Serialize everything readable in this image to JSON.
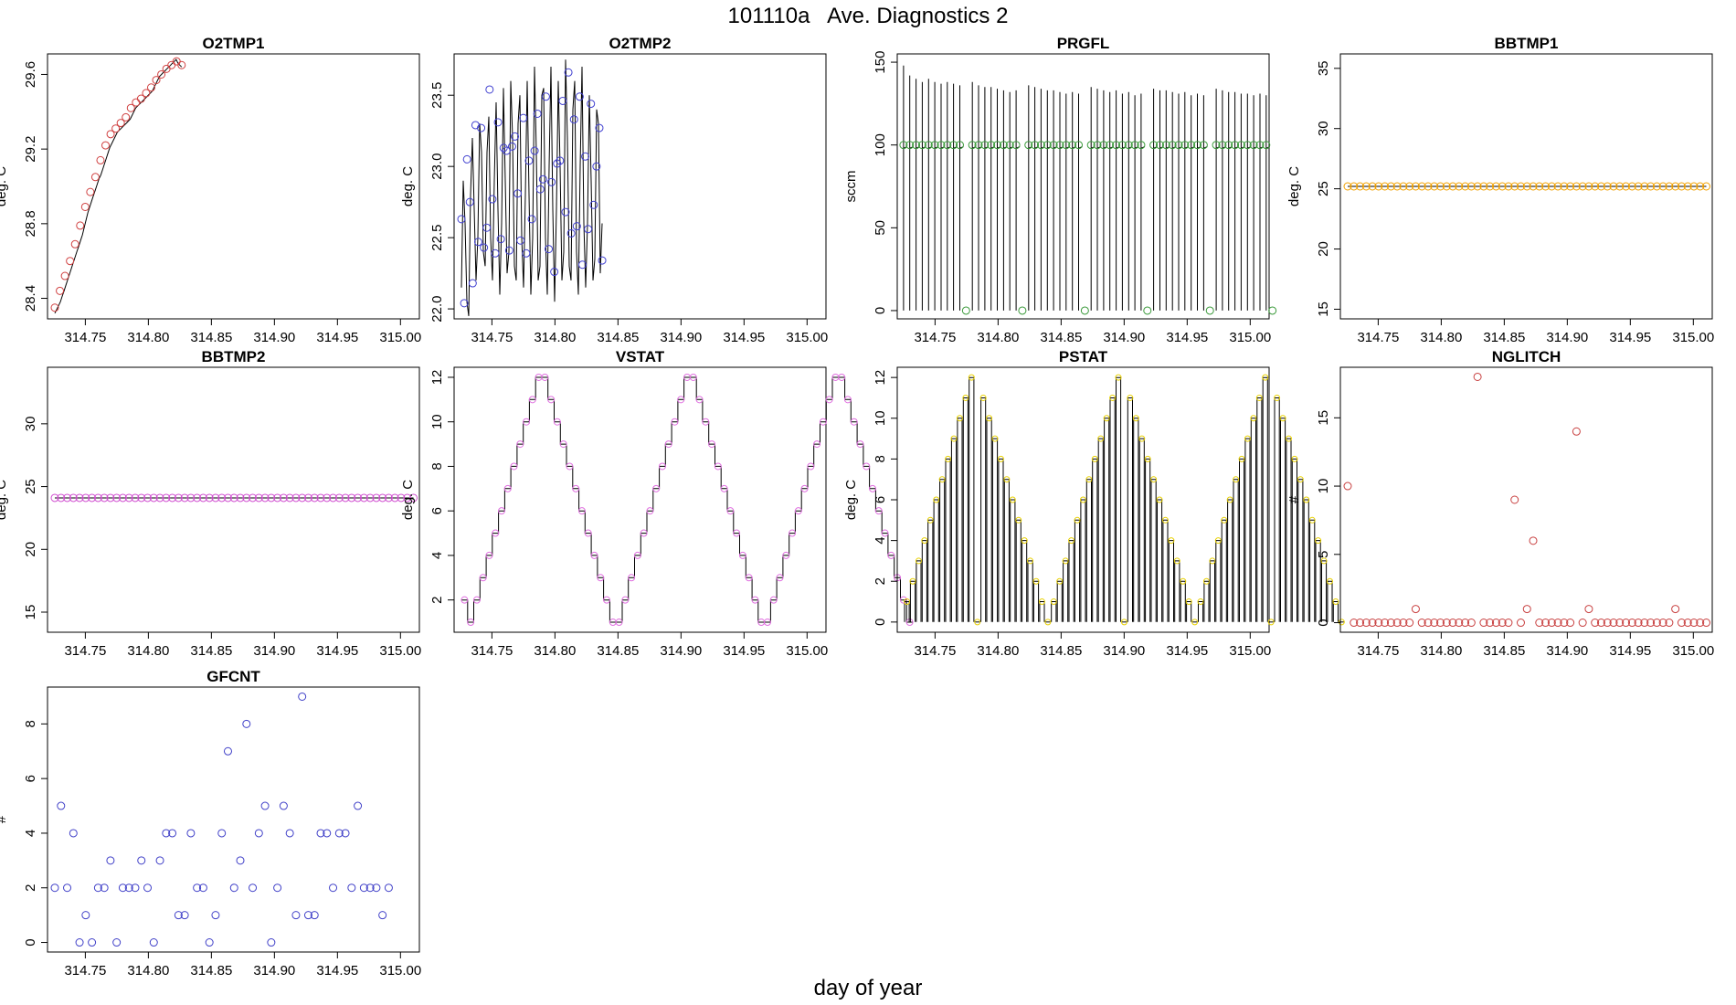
{
  "page": {
    "title": "101110a   Ave. Diagnostics 2",
    "xlabel": "day of year"
  },
  "chart_data": [
    {
      "id": "o2tmp1",
      "type": "line",
      "title": "O2TMP1",
      "ylabel": "deg. C",
      "xlim": [
        314.72,
        315.015
      ],
      "ylim": [
        28.29,
        29.71
      ],
      "xticks": [
        314.75,
        314.8,
        314.85,
        314.9,
        314.95,
        315.0
      ],
      "xtick_labels": [
        "314.75",
        "314.80",
        "314.85",
        "314.90",
        "314.95",
        "315.00"
      ],
      "yticks": [
        28.4,
        28.8,
        29.2,
        29.6
      ],
      "ytick_labels": [
        "28.4",
        "28.8",
        "29.2",
        "29.6"
      ],
      "marker_color": "#d04040",
      "x_start": 314.7258,
      "x_step": 0.001458,
      "values": [
        28.32,
        28.34,
        28.36,
        28.38,
        28.41,
        28.44,
        28.47,
        28.5,
        28.53,
        28.56,
        28.59,
        28.62,
        28.65,
        28.68,
        28.71,
        28.74,
        28.78,
        28.82,
        28.86,
        28.89,
        28.92,
        28.95,
        28.98,
        29.01,
        29.04,
        29.06,
        29.09,
        29.12,
        29.15,
        29.18,
        29.21,
        29.23,
        29.25,
        29.27,
        29.29,
        29.3,
        29.31,
        29.32,
        29.33,
        29.34,
        29.35,
        29.36,
        29.38,
        29.4,
        29.42,
        29.43,
        29.44,
        29.45,
        29.46,
        29.47,
        29.48,
        29.49,
        29.5,
        29.51,
        29.53,
        29.55,
        29.57,
        29.59,
        29.6,
        29.61,
        29.62,
        29.63,
        29.64,
        29.65,
        29.66,
        29.67,
        29.68,
        29.66,
        29.65,
        29.64
      ],
      "markers": [
        28.35,
        28.44,
        28.52,
        28.6,
        28.69,
        28.79,
        28.89,
        28.97,
        29.05,
        29.14,
        29.22,
        29.28,
        29.31,
        29.34,
        29.37,
        29.42,
        29.45,
        29.47,
        29.5,
        29.53,
        29.57,
        29.6,
        29.63,
        29.65,
        29.67,
        29.65
      ]
    },
    {
      "id": "o2tmp2",
      "type": "line",
      "title": "O2TMP2",
      "ylabel": "deg. C",
      "xlim": [
        314.72,
        315.015
      ],
      "ylim": [
        21.93,
        23.79
      ],
      "xticks": [
        314.75,
        314.8,
        314.85,
        314.9,
        314.95,
        315.0
      ],
      "xtick_labels": [
        "314.75",
        "314.80",
        "314.85",
        "314.90",
        "314.95",
        "315.00"
      ],
      "yticks": [
        22.0,
        22.5,
        23.0,
        23.5
      ],
      "ytick_labels": [
        "22.0",
        "22.5",
        "23.0",
        "23.5"
      ],
      "marker_color": "#4040d0",
      "x_start": 314.7258,
      "x_step": 0.00145,
      "values": [
        22.15,
        22.9,
        22.6,
        22.05,
        21.95,
        22.8,
        23.2,
        22.7,
        22.2,
        22.5,
        23.3,
        23.1,
        22.4,
        22.3,
        23.1,
        23.35,
        22.5,
        22.2,
        22.9,
        23.45,
        22.7,
        22.1,
        22.6,
        23.55,
        22.9,
        22.25,
        22.4,
        23.6,
        23.2,
        22.3,
        22.2,
        23.3,
        23.5,
        22.5,
        22.15,
        22.8,
        23.6,
        22.8,
        22.1,
        22.5,
        23.7,
        23.1,
        22.2,
        22.3,
        23.5,
        23.55,
        22.5,
        22.1,
        23.0,
        23.7,
        22.7,
        22.05,
        22.7,
        23.6,
        23.0,
        22.2,
        22.4,
        23.75,
        23.2,
        22.3,
        22.2,
        23.4,
        23.6,
        22.4,
        22.1,
        23.0,
        23.7,
        22.6,
        22.15,
        22.6,
        23.5,
        22.9,
        22.2,
        22.35,
        23.4,
        23.3,
        22.25,
        22.6
      ],
      "markers": [
        22.63,
        22.04,
        23.05,
        22.75,
        22.18,
        23.29,
        22.47,
        23.27,
        22.43,
        22.57,
        23.54,
        22.77,
        22.39,
        23.31,
        22.49,
        23.13,
        23.11,
        22.41,
        23.14,
        23.21,
        22.81,
        22.48,
        23.34,
        22.39,
        23.04,
        22.63,
        23.11,
        23.37,
        22.84,
        22.91,
        23.49,
        22.42,
        22.89,
        22.26,
        23.02,
        23.04,
        23.46,
        22.68,
        23.66,
        22.53,
        23.33,
        22.58,
        23.49,
        22.31,
        23.07,
        22.56,
        23.44,
        22.73,
        23.0,
        23.27,
        22.34
      ]
    },
    {
      "id": "prgfl",
      "type": "line",
      "title": "PRGFL",
      "ylabel": "sccm",
      "xlim": [
        314.72,
        315.015
      ],
      "ylim": [
        -5,
        155
      ],
      "xticks": [
        314.75,
        314.8,
        314.85,
        314.9,
        314.95,
        315.0
      ],
      "xtick_labels": [
        "314.75",
        "314.80",
        "314.85",
        "314.90",
        "314.95",
        "315.00"
      ],
      "yticks": [
        0,
        50,
        100,
        150
      ],
      "ytick_labels": [
        "0",
        "50",
        "100",
        "150"
      ],
      "marker_color": "#3a9a3a",
      "x_start": 314.725,
      "x_step": 0.00496,
      "values": [
        148,
        142,
        140,
        138,
        140,
        138,
        137,
        138,
        137,
        136,
        0,
        138,
        136,
        135,
        135,
        134,
        133,
        132,
        133,
        0,
        136,
        135,
        134,
        133,
        133,
        132,
        131,
        132,
        131,
        0,
        135,
        134,
        133,
        132,
        133,
        131,
        132,
        130,
        131,
        0,
        134,
        133,
        133,
        132,
        131,
        132,
        130,
        131,
        130,
        0,
        134,
        133,
        132,
        132,
        131,
        131,
        130,
        131,
        130,
        0
      ],
      "markers": [
        100,
        100,
        100,
        100,
        100,
        100,
        100,
        100,
        100,
        100,
        0,
        100,
        100,
        100,
        100,
        100,
        100,
        100,
        100,
        0,
        100,
        100,
        100,
        100,
        100,
        100,
        100,
        100,
        100,
        0,
        100,
        100,
        100,
        100,
        100,
        100,
        100,
        100,
        100,
        0,
        100,
        100,
        100,
        100,
        100,
        100,
        100,
        100,
        100,
        0,
        100,
        100,
        100,
        100,
        100,
        100,
        100,
        100,
        100,
        0
      ]
    },
    {
      "id": "bbtmp1",
      "type": "line",
      "title": "BBTMP1",
      "ylabel": "deg. C",
      "xlim": [
        314.72,
        315.015
      ],
      "ylim": [
        14.2,
        36.2
      ],
      "xticks": [
        314.75,
        314.8,
        314.85,
        314.9,
        314.95,
        315.0
      ],
      "xtick_labels": [
        "314.75",
        "314.80",
        "314.85",
        "314.90",
        "314.95",
        "315.00"
      ],
      "yticks": [
        15,
        20,
        25,
        30,
        35
      ],
      "ytick_labels": [
        "15",
        "20",
        "25",
        "30",
        "35"
      ],
      "marker_color": "#f0a000",
      "x_start": 314.7258,
      "x_step": 0.004905,
      "constant": 25.2,
      "marker_count": 59
    },
    {
      "id": "bbtmp2",
      "type": "line",
      "title": "BBTMP2",
      "ylabel": "deg. C",
      "xlim": [
        314.72,
        315.015
      ],
      "ylim": [
        13.4,
        34.5
      ],
      "xticks": [
        314.75,
        314.8,
        314.85,
        314.9,
        314.95,
        315.0
      ],
      "xtick_labels": [
        "314.75",
        "314.80",
        "314.85",
        "314.90",
        "314.95",
        "315.00"
      ],
      "yticks": [
        15,
        20,
        25,
        30
      ],
      "ytick_labels": [
        "15",
        "20",
        "25",
        "30"
      ],
      "marker_color": "#d050d0",
      "x_start": 314.7258,
      "x_step": 0.004905,
      "constant": 24.1,
      "marker_count": 59
    },
    {
      "id": "vstat",
      "type": "step",
      "title": "VSTAT",
      "ylabel": "deg. C",
      "xlim": [
        314.72,
        315.015
      ],
      "ylim": [
        0.55,
        12.45
      ],
      "xticks": [
        314.75,
        314.8,
        314.85,
        314.9,
        314.95,
        315.0
      ],
      "xtick_labels": [
        "314.75",
        "314.80",
        "314.85",
        "314.90",
        "314.95",
        "315.00"
      ],
      "yticks": [
        2,
        4,
        6,
        8,
        10,
        12
      ],
      "ytick_labels": [
        "2",
        "4",
        "6",
        "8",
        "10",
        "12"
      ],
      "marker_color": "#e070e0",
      "x_start": 314.7258,
      "x_step": 0.004905,
      "values": [
        2,
        1,
        2,
        3,
        4,
        5,
        6,
        7,
        8,
        9,
        10,
        11,
        12,
        12,
        11,
        10,
        9,
        8,
        7,
        6,
        5,
        4,
        3,
        2,
        1,
        1,
        2,
        3,
        4,
        5,
        6,
        7,
        8,
        9,
        10,
        11,
        12,
        12,
        11,
        10,
        9,
        8,
        7,
        6,
        5,
        4,
        3,
        2,
        1,
        1,
        2,
        3,
        4,
        5,
        6,
        7,
        8,
        9,
        10,
        11,
        12,
        12,
        11,
        10,
        9,
        8,
        7,
        6,
        5,
        4,
        3,
        2,
        1
      ]
    },
    {
      "id": "pstat",
      "type": "bars",
      "title": "PSTAT",
      "ylabel": "deg. C",
      "xlim": [
        314.72,
        315.015
      ],
      "ylim": [
        -0.5,
        12.5
      ],
      "xticks": [
        314.75,
        314.8,
        314.85,
        314.9,
        314.95,
        315.0
      ],
      "xtick_labels": [
        "314.75",
        "314.80",
        "314.85",
        "314.90",
        "314.95",
        "315.00"
      ],
      "yticks": [
        0,
        2,
        4,
        6,
        8,
        10,
        12
      ],
      "ytick_labels": [
        "0",
        "2",
        "4",
        "6",
        "8",
        "10",
        "12"
      ],
      "marker_color": "#e8d000",
      "x_start": 314.7258,
      "x_step": 0.00466,
      "values": [
        1,
        2,
        3,
        4,
        5,
        6,
        7,
        8,
        9,
        10,
        11,
        12,
        0,
        11,
        10,
        9,
        8,
        7,
        6,
        5,
        4,
        3,
        2,
        1,
        0,
        1,
        2,
        3,
        4,
        5,
        6,
        7,
        8,
        9,
        10,
        11,
        12,
        0,
        11,
        10,
        9,
        8,
        7,
        6,
        5,
        4,
        3,
        2,
        1,
        0,
        1,
        2,
        3,
        4,
        5,
        6,
        7,
        8,
        9,
        10,
        11,
        12,
        0,
        11,
        10,
        9,
        8,
        7,
        6,
        5,
        4,
        3,
        2,
        1,
        0
      ]
    },
    {
      "id": "nglitch",
      "type": "scatter",
      "title": "NGLITCH",
      "ylabel": "#",
      "xlim": [
        314.72,
        315.015
      ],
      "ylim": [
        -0.7,
        18.7
      ],
      "xticks": [
        314.75,
        314.8,
        314.85,
        314.9,
        314.95,
        315.0
      ],
      "xtick_labels": [
        "314.75",
        "314.80",
        "314.85",
        "314.90",
        "314.95",
        "315.00"
      ],
      "yticks": [
        0,
        5,
        10,
        15
      ],
      "ytick_labels": [
        "0",
        "5",
        "10",
        "15"
      ],
      "marker_color": "#c84040",
      "x_start": 314.7258,
      "x_step": 0.004905,
      "values": [
        10,
        0,
        0,
        0,
        0,
        0,
        0,
        0,
        0,
        0,
        0,
        1,
        0,
        0,
        0,
        0,
        0,
        0,
        0,
        0,
        0,
        18,
        0,
        0,
        0,
        0,
        0,
        9,
        0,
        1,
        6,
        0,
        0,
        0,
        0,
        0,
        0,
        14,
        0,
        1,
        0,
        0,
        0,
        0,
        0,
        0,
        0,
        0,
        0,
        0,
        0,
        0,
        0,
        1,
        0,
        0,
        0,
        0,
        0
      ]
    },
    {
      "id": "gfcnt",
      "type": "scatter",
      "title": "GFCNT",
      "ylabel": "#",
      "xlim": [
        314.72,
        315.015
      ],
      "ylim": [
        -0.35,
        9.35
      ],
      "xticks": [
        314.75,
        314.8,
        314.85,
        314.9,
        314.95,
        315.0
      ],
      "xtick_labels": [
        "314.75",
        "314.80",
        "314.85",
        "314.90",
        "314.95",
        "315.00"
      ],
      "yticks": [
        0,
        2,
        4,
        6,
        8
      ],
      "ytick_labels": [
        "0",
        "2",
        "4",
        "6",
        "8"
      ],
      "marker_color": "#4040c8",
      "x_start": 314.7258,
      "x_step": 0.004905,
      "values": [
        2,
        5,
        2,
        4,
        0,
        1,
        0,
        2,
        2,
        3,
        0,
        2,
        2,
        2,
        3,
        2,
        0,
        3,
        4,
        4,
        1,
        1,
        4,
        2,
        2,
        0,
        1,
        4,
        7,
        2,
        3,
        8,
        2,
        4,
        5,
        0,
        2,
        5,
        4,
        1,
        9,
        1,
        1,
        4,
        4,
        2,
        4,
        4,
        2,
        5,
        2,
        2,
        2,
        1,
        2
      ]
    }
  ]
}
